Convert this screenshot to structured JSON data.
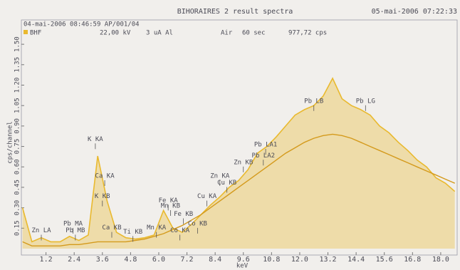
{
  "chart_data": {
    "type": "line",
    "title": "BIHORAIRES 2 result spectra",
    "date": "05-mai-2006 07:22:33",
    "info": [
      "04-mai-2006 08:46:59 AP/001/04",
      "22,00 kV",
      "3 uA Al",
      "Air",
      "60 sec",
      "977,72 cps"
    ],
    "ylabel": "cps/channel",
    "xlabel": "keV",
    "x": [
      0.2,
      0.6,
      1.0,
      1.4,
      1.8,
      2.2,
      2.6,
      3.0,
      3.4,
      3.8,
      4.2,
      4.6,
      5.0,
      5.4,
      5.8,
      6.2,
      6.6,
      7.0,
      7.4,
      7.8,
      8.2,
      8.6,
      9.0,
      9.4,
      9.8,
      10.2,
      10.6,
      11.0,
      11.4,
      11.8,
      12.2,
      12.6,
      13.0,
      13.4,
      13.8,
      14.2,
      14.6,
      15.0,
      15.4,
      15.8,
      16.2,
      16.6,
      17.0,
      17.4,
      17.8,
      18.2,
      18.6
    ],
    "series": [
      {
        "name": "BHF",
        "color": "#e9b92e",
        "values": [
          0.3,
          0.05,
          0.08,
          0.05,
          0.05,
          0.09,
          0.06,
          0.1,
          0.68,
          0.35,
          0.12,
          0.08,
          0.07,
          0.08,
          0.1,
          0.28,
          0.15,
          0.12,
          0.18,
          0.25,
          0.32,
          0.38,
          0.45,
          0.5,
          0.58,
          0.7,
          0.75,
          0.82,
          0.9,
          0.98,
          1.02,
          1.05,
          1.12,
          1.25,
          1.1,
          1.05,
          1.02,
          0.98,
          0.9,
          0.85,
          0.78,
          0.72,
          0.65,
          0.6,
          0.52,
          0.48,
          0.42
        ]
      },
      {
        "color": "#d49a1c",
        "values": [
          0.05,
          0.02,
          0.02,
          0.02,
          0.02,
          0.03,
          0.03,
          0.04,
          0.05,
          0.05,
          0.05,
          0.05,
          0.06,
          0.07,
          0.09,
          0.11,
          0.14,
          0.17,
          0.21,
          0.25,
          0.3,
          0.35,
          0.4,
          0.45,
          0.5,
          0.55,
          0.6,
          0.65,
          0.7,
          0.74,
          0.78,
          0.81,
          0.83,
          0.84,
          0.83,
          0.81,
          0.78,
          0.75,
          0.72,
          0.69,
          0.66,
          0.63,
          0.6,
          0.57,
          0.54,
          0.51,
          0.48
        ]
      }
    ],
    "annotations": [
      {
        "text": "Zn LA",
        "x": 1.0,
        "y": 0.05
      },
      {
        "text": "Pb MA",
        "x": 2.35,
        "y": 0.1
      },
      {
        "text": "Pb MB",
        "x": 2.45,
        "y": 0.05
      },
      {
        "text": "K KA",
        "x": 3.3,
        "y": 0.72
      },
      {
        "text": "Ca KA",
        "x": 3.7,
        "y": 0.45
      },
      {
        "text": "K KB",
        "x": 3.6,
        "y": 0.3
      },
      {
        "text": "Ca KB",
        "x": 4.0,
        "y": 0.07
      },
      {
        "text": "Ti KB",
        "x": 4.9,
        "y": 0.04
      },
      {
        "text": "Mn KA",
        "x": 5.9,
        "y": 0.07
      },
      {
        "text": "Fe KA",
        "x": 6.4,
        "y": 0.27
      },
      {
        "text": "Mn KB",
        "x": 6.5,
        "y": 0.23
      },
      {
        "text": "Fe KB",
        "x": 7.05,
        "y": 0.17
      },
      {
        "text": "Co KA",
        "x": 6.9,
        "y": 0.05
      },
      {
        "text": "Co KB",
        "x": 7.65,
        "y": 0.1
      },
      {
        "text": "Cu KA",
        "x": 8.05,
        "y": 0.3
      },
      {
        "text": "Zn KA",
        "x": 8.6,
        "y": 0.45
      },
      {
        "text": "Cu KB",
        "x": 8.9,
        "y": 0.4
      },
      {
        "text": "Zn KB",
        "x": 9.6,
        "y": 0.55
      },
      {
        "text": "Pb LA1",
        "x": 10.55,
        "y": 0.68
      },
      {
        "text": "Pb LA2",
        "x": 10.45,
        "y": 0.6
      },
      {
        "text": "Pb LB",
        "x": 12.6,
        "y": 1.0
      },
      {
        "text": "Pb LG",
        "x": 14.8,
        "y": 1.0
      }
    ],
    "xlim": [
      0,
      18.7
    ],
    "ylim": [
      0,
      1.6
    ],
    "xticks": [
      1.2,
      2.4,
      3.6,
      4.8,
      {
        "value": 6,
        "label": "6.0"
      },
      7.2,
      8.4,
      9.6,
      10.8,
      {
        "value": 12,
        "label": "12.0"
      },
      13.2,
      14.4,
      15.6,
      16.8,
      {
        "value": 18,
        "label": "18.0"
      }
    ],
    "yticks": [
      0.15,
      {
        "value": 0.3,
        "label": "0.30"
      },
      0.45,
      {
        "value": 0.6,
        "label": "0.60"
      },
      0.75,
      {
        "value": 0.9,
        "label": "0.90"
      },
      1.05,
      {
        "value": 1.2,
        "label": "1.20"
      },
      1.35,
      {
        "value": 1.5,
        "label": "1.50"
      }
    ]
  }
}
